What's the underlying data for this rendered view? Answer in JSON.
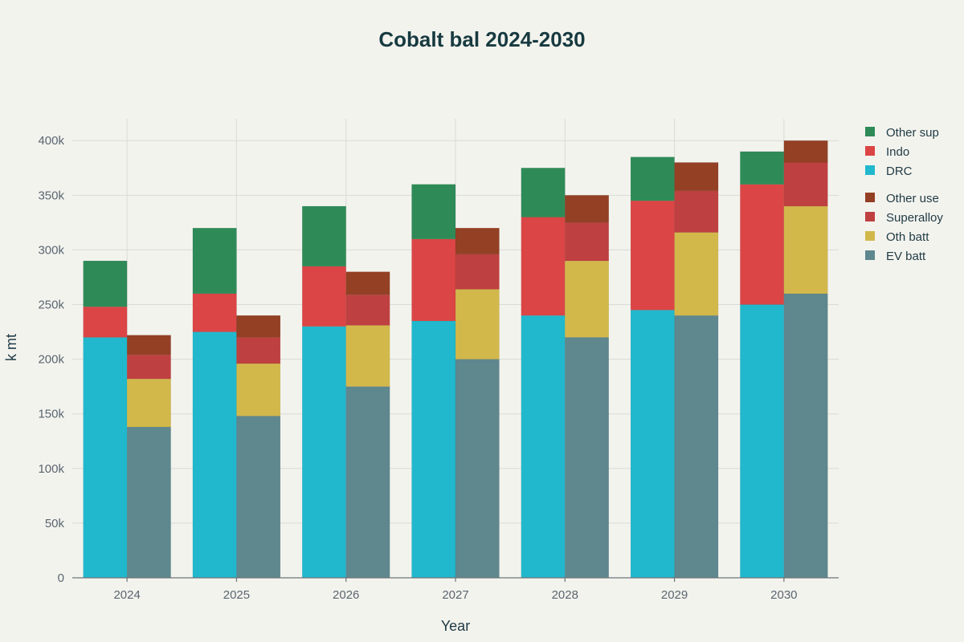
{
  "chart_data": {
    "type": "bar",
    "title": "Cobalt bal 2024-2030",
    "xlabel": "Year",
    "ylabel": "k mt",
    "categories": [
      "2024",
      "2025",
      "2026",
      "2027",
      "2028",
      "2029",
      "2030"
    ],
    "ylim": [
      0,
      420000
    ],
    "yticks": [
      0,
      50000,
      100000,
      150000,
      200000,
      250000,
      300000,
      350000,
      400000
    ],
    "ytick_labels": [
      "0",
      "50k",
      "100k",
      "150k",
      "200k",
      "250k",
      "300k",
      "350k",
      "400k"
    ],
    "grid": true,
    "legend_position": "right",
    "stacks": [
      {
        "stack": "supply",
        "series": [
          {
            "name": "DRC",
            "color": "#21b8cd",
            "values": [
              220000,
              225000,
              230000,
              235000,
              240000,
              245000,
              250000
            ]
          },
          {
            "name": "Indo",
            "color": "#db4545",
            "values": [
              28000,
              35000,
              55000,
              75000,
              90000,
              100000,
              110000
            ]
          },
          {
            "name": "Other sup",
            "color": "#2e8b57",
            "values": [
              42000,
              60000,
              55000,
              50000,
              45000,
              40000,
              30000
            ]
          }
        ]
      },
      {
        "stack": "demand",
        "series": [
          {
            "name": "EV batt",
            "color": "#5e878e",
            "values": [
              138000,
              148000,
              175000,
              200000,
              220000,
              240000,
              260000
            ]
          },
          {
            "name": "Oth batt",
            "color": "#d2b84b",
            "values": [
              44000,
              48000,
              56000,
              64000,
              70000,
              76000,
              80000
            ]
          },
          {
            "name": "Superalloy",
            "color": "#bf4040",
            "values": [
              22000,
              24000,
              28000,
              32000,
              35000,
              38000,
              40000
            ]
          },
          {
            "name": "Other use",
            "color": "#934024",
            "values": [
              18000,
              20000,
              21000,
              24000,
              25000,
              26000,
              20000
            ]
          }
        ]
      }
    ],
    "legend_groups": [
      [
        "Other sup",
        "Indo",
        "DRC"
      ],
      [
        "Other use",
        "Superalloy",
        "Oth batt",
        "EV batt"
      ]
    ]
  }
}
